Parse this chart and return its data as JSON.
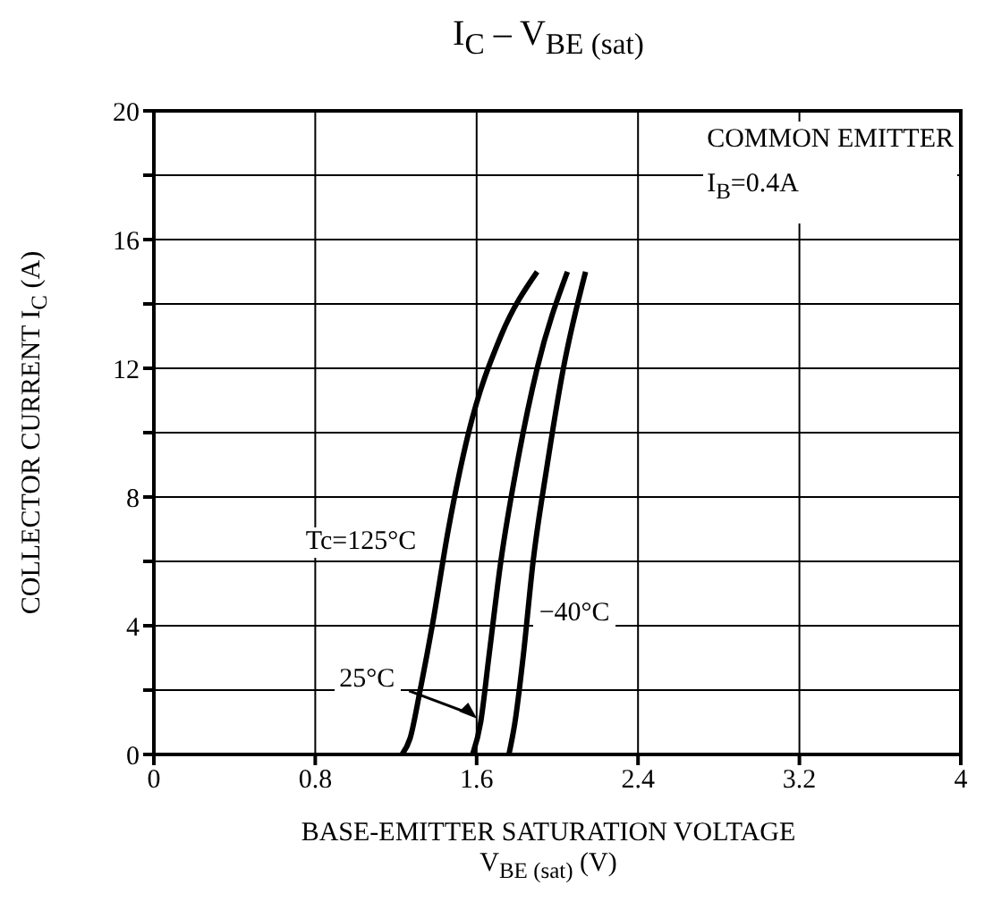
{
  "chart_data": {
    "type": "line",
    "title": "I$_{C}$ – V$_{BE (sat)}$",
    "xlabel": "BASE-EMITTER SATURATION VOLTAGE\nV$_{BE (sat)}$  (V)",
    "ylabel": "COLLECTOR CURRENT  I$_{C}$  (A)",
    "annotations": [
      "COMMON EMITTER",
      "I$_{B}$=0.4A"
    ],
    "series": [
      {
        "name": "Tc=125°C",
        "color": "#000000",
        "x": [
          1.23,
          1.27,
          1.32,
          1.38,
          1.46,
          1.56,
          1.72,
          1.9
        ],
        "values": [
          0,
          0.5,
          2,
          4,
          7,
          10,
          13,
          15
        ]
      },
      {
        "name": "25°C",
        "color": "#000000",
        "x": [
          1.58,
          1.62,
          1.66,
          1.72,
          1.8,
          1.9,
          2.05
        ],
        "values": [
          0,
          1,
          3,
          6,
          9,
          12,
          15
        ]
      },
      {
        "name": "−40°C",
        "color": "#000000",
        "x": [
          1.76,
          1.79,
          1.83,
          1.88,
          1.95,
          2.03,
          2.14
        ],
        "values": [
          0,
          1,
          3,
          6,
          9,
          12,
          15
        ]
      }
    ],
    "xlim": [
      0,
      4
    ],
    "xticks": [
      0,
      0.8,
      1.6,
      2.4,
      3.2,
      4
    ],
    "ylim": [
      0,
      20
    ],
    "yticks": [
      0,
      {
        "value": 2,
        "label": null
      },
      4,
      {
        "value": 6,
        "label": null
      },
      8,
      {
        "value": 10,
        "label": null
      },
      12,
      {
        "value": 14,
        "label": null
      },
      16,
      {
        "value": 18,
        "label": null
      },
      20
    ],
    "grid": true,
    "marker": "none",
    "line_style": "solid"
  }
}
